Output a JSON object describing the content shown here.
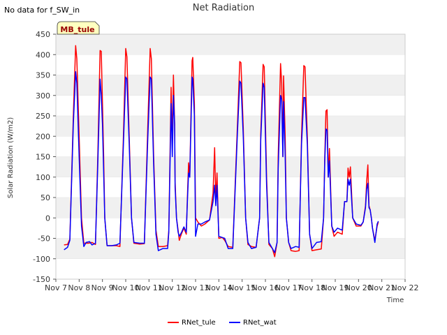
{
  "note": "No data for f_SW_in",
  "site_badge": "MB_tule",
  "chart_data": {
    "type": "line",
    "title": "Net Radiation",
    "xlabel": "Time",
    "ylabel": "Solar Radiation (W/m2)",
    "ylim": [
      -150,
      450
    ],
    "yticks": [
      -150,
      -100,
      -50,
      0,
      50,
      100,
      150,
      200,
      250,
      300,
      350,
      400,
      450
    ],
    "x_unit": "days since Nov 7",
    "xlim": [
      0,
      15
    ],
    "xticks": [
      0,
      1,
      2,
      3,
      4,
      5,
      6,
      7,
      8,
      9,
      10,
      11,
      12,
      13,
      14,
      15
    ],
    "xtick_labels": [
      "Nov 7",
      "Nov 8",
      "Nov 9",
      "Nov 10",
      "Nov 11",
      "Nov 12",
      "Nov 13",
      "Nov 14",
      "Nov 15",
      "Nov 16",
      "Nov 17",
      "Nov 18",
      "Nov 19",
      "Nov 20",
      "Nov 21",
      "Nov 22"
    ],
    "grid": "horizontal bands",
    "legend_position": "bottom-center",
    "series": [
      {
        "name": "RNet_tule",
        "color": "#ff0000",
        "points": [
          [
            0.35,
            -66
          ],
          [
            0.5,
            -65
          ],
          [
            0.6,
            -52
          ],
          [
            0.75,
            250
          ],
          [
            0.85,
            422
          ],
          [
            0.9,
            390
          ],
          [
            1.0,
            200
          ],
          [
            1.1,
            0
          ],
          [
            1.2,
            -62
          ],
          [
            1.4,
            -62
          ],
          [
            1.55,
            -60
          ],
          [
            1.7,
            -65
          ],
          [
            1.8,
            150
          ],
          [
            1.9,
            410
          ],
          [
            1.95,
            408
          ],
          [
            2.0,
            280
          ],
          [
            2.05,
            160
          ],
          [
            2.1,
            0
          ],
          [
            2.2,
            -68
          ],
          [
            2.4,
            -68
          ],
          [
            2.6,
            -68
          ],
          [
            2.75,
            -70
          ],
          [
            2.9,
            200
          ],
          [
            3.0,
            415
          ],
          [
            3.05,
            395
          ],
          [
            3.15,
            200
          ],
          [
            3.25,
            0
          ],
          [
            3.35,
            -62
          ],
          [
            3.6,
            -64
          ],
          [
            3.8,
            -63
          ],
          [
            3.95,
            230
          ],
          [
            4.05,
            415
          ],
          [
            4.1,
            390
          ],
          [
            4.2,
            150
          ],
          [
            4.3,
            -30
          ],
          [
            4.4,
            -70
          ],
          [
            4.6,
            -70
          ],
          [
            4.8,
            -68
          ],
          [
            4.85,
            -30
          ],
          [
            4.95,
            320
          ],
          [
            5.0,
            180
          ],
          [
            5.05,
            350
          ],
          [
            5.1,
            230
          ],
          [
            5.12,
            90
          ],
          [
            5.18,
            0
          ],
          [
            5.25,
            -30
          ],
          [
            5.3,
            -55
          ],
          [
            5.4,
            -38
          ],
          [
            5.5,
            -25
          ],
          [
            5.6,
            -40
          ],
          [
            5.65,
            50
          ],
          [
            5.7,
            135
          ],
          [
            5.75,
            100
          ],
          [
            5.8,
            240
          ],
          [
            5.85,
            385
          ],
          [
            5.88,
            393
          ],
          [
            5.95,
            280
          ],
          [
            6.0,
            0
          ],
          [
            6.1,
            -10
          ],
          [
            6.25,
            -20
          ],
          [
            6.4,
            -15
          ],
          [
            6.6,
            -5
          ],
          [
            6.75,
            60
          ],
          [
            6.82,
            172
          ],
          [
            6.87,
            40
          ],
          [
            6.92,
            110
          ],
          [
            7.0,
            -50
          ],
          [
            7.15,
            -48
          ],
          [
            7.25,
            -55
          ],
          [
            7.4,
            -70
          ],
          [
            7.6,
            -72
          ],
          [
            7.8,
            230
          ],
          [
            7.9,
            383
          ],
          [
            7.95,
            380
          ],
          [
            8.05,
            220
          ],
          [
            8.15,
            0
          ],
          [
            8.25,
            -65
          ],
          [
            8.4,
            -70
          ],
          [
            8.6,
            -72
          ],
          [
            8.75,
            0
          ],
          [
            8.8,
            205
          ],
          [
            8.9,
            376
          ],
          [
            8.95,
            370
          ],
          [
            9.05,
            100
          ],
          [
            9.15,
            -65
          ],
          [
            9.3,
            -75
          ],
          [
            9.4,
            -95
          ],
          [
            9.5,
            -60
          ],
          [
            9.55,
            150
          ],
          [
            9.65,
            378
          ],
          [
            9.7,
            330
          ],
          [
            9.75,
            150
          ],
          [
            9.78,
            348
          ],
          [
            9.85,
            200
          ],
          [
            9.9,
            0
          ],
          [
            10.0,
            -60
          ],
          [
            10.1,
            -80
          ],
          [
            10.3,
            -82
          ],
          [
            10.45,
            -80
          ],
          [
            10.55,
            200
          ],
          [
            10.65,
            373
          ],
          [
            10.7,
            370
          ],
          [
            10.8,
            200
          ],
          [
            10.9,
            -40
          ],
          [
            11.0,
            -80
          ],
          [
            11.2,
            -78
          ],
          [
            11.4,
            -76
          ],
          [
            11.5,
            0
          ],
          [
            11.55,
            150
          ],
          [
            11.6,
            262
          ],
          [
            11.65,
            265
          ],
          [
            11.7,
            100
          ],
          [
            11.75,
            170
          ],
          [
            11.85,
            -20
          ],
          [
            11.95,
            -45
          ],
          [
            12.1,
            -35
          ],
          [
            12.3,
            -40
          ],
          [
            12.4,
            40
          ],
          [
            12.5,
            40
          ],
          [
            12.55,
            122
          ],
          [
            12.6,
            100
          ],
          [
            12.65,
            125
          ],
          [
            12.75,
            0
          ],
          [
            12.9,
            -20
          ],
          [
            13.1,
            -20
          ],
          [
            13.2,
            -10
          ],
          [
            13.3,
            30
          ],
          [
            13.35,
            90
          ],
          [
            13.4,
            130
          ],
          [
            13.45,
            30
          ],
          [
            13.5,
            20
          ],
          [
            13.55,
            0
          ],
          [
            13.6,
            -25
          ],
          [
            13.7,
            -55
          ],
          [
            13.8,
            -20
          ],
          [
            13.85,
            -10
          ]
        ]
      },
      {
        "name": "RNet_wat",
        "color": "#0000ff",
        "points": [
          [
            0.35,
            -78
          ],
          [
            0.5,
            -72
          ],
          [
            0.6,
            -55
          ],
          [
            0.75,
            230
          ],
          [
            0.85,
            358
          ],
          [
            0.9,
            330
          ],
          [
            1.0,
            150
          ],
          [
            1.1,
            -20
          ],
          [
            1.2,
            -70
          ],
          [
            1.3,
            -60
          ],
          [
            1.45,
            -58
          ],
          [
            1.55,
            -66
          ],
          [
            1.7,
            -62
          ],
          [
            1.8,
            130
          ],
          [
            1.9,
            340
          ],
          [
            1.95,
            300
          ],
          [
            2.0,
            230
          ],
          [
            2.05,
            120
          ],
          [
            2.1,
            0
          ],
          [
            2.2,
            -68
          ],
          [
            2.4,
            -68
          ],
          [
            2.6,
            -66
          ],
          [
            2.75,
            -62
          ],
          [
            2.9,
            180
          ],
          [
            3.0,
            345
          ],
          [
            3.05,
            340
          ],
          [
            3.15,
            180
          ],
          [
            3.25,
            0
          ],
          [
            3.35,
            -60
          ],
          [
            3.6,
            -62
          ],
          [
            3.8,
            -62
          ],
          [
            3.95,
            200
          ],
          [
            4.05,
            345
          ],
          [
            4.1,
            340
          ],
          [
            4.2,
            130
          ],
          [
            4.3,
            -40
          ],
          [
            4.4,
            -80
          ],
          [
            4.6,
            -75
          ],
          [
            4.8,
            -75
          ],
          [
            4.85,
            -35
          ],
          [
            4.95,
            280
          ],
          [
            5.0,
            150
          ],
          [
            5.05,
            300
          ],
          [
            5.1,
            230
          ],
          [
            5.12,
            75
          ],
          [
            5.18,
            0
          ],
          [
            5.25,
            -35
          ],
          [
            5.3,
            -45
          ],
          [
            5.4,
            -35
          ],
          [
            5.5,
            -22
          ],
          [
            5.6,
            -35
          ],
          [
            5.65,
            40
          ],
          [
            5.7,
            110
          ],
          [
            5.75,
            100
          ],
          [
            5.8,
            220
          ],
          [
            5.85,
            345
          ],
          [
            5.88,
            340
          ],
          [
            5.95,
            250
          ],
          [
            6.0,
            -45
          ],
          [
            6.1,
            -15
          ],
          [
            6.25,
            -15
          ],
          [
            6.4,
            -10
          ],
          [
            6.6,
            -5
          ],
          [
            6.75,
            40
          ],
          [
            6.82,
            80
          ],
          [
            6.87,
            30
          ],
          [
            6.92,
            80
          ],
          [
            7.0,
            -45
          ],
          [
            7.15,
            -48
          ],
          [
            7.25,
            -50
          ],
          [
            7.4,
            -75
          ],
          [
            7.6,
            -75
          ],
          [
            7.8,
            210
          ],
          [
            7.9,
            335
          ],
          [
            7.95,
            330
          ],
          [
            8.05,
            200
          ],
          [
            8.15,
            0
          ],
          [
            8.25,
            -60
          ],
          [
            8.4,
            -75
          ],
          [
            8.6,
            -72
          ],
          [
            8.75,
            0
          ],
          [
            8.8,
            190
          ],
          [
            8.9,
            330
          ],
          [
            8.95,
            320
          ],
          [
            9.05,
            80
          ],
          [
            9.15,
            -60
          ],
          [
            9.3,
            -75
          ],
          [
            9.4,
            -85
          ],
          [
            9.5,
            -60
          ],
          [
            9.55,
            120
          ],
          [
            9.65,
            300
          ],
          [
            9.7,
            290
          ],
          [
            9.75,
            150
          ],
          [
            9.78,
            285
          ],
          [
            9.85,
            150
          ],
          [
            9.9,
            0
          ],
          [
            10.0,
            -60
          ],
          [
            10.1,
            -75
          ],
          [
            10.3,
            -70
          ],
          [
            10.45,
            -72
          ],
          [
            10.55,
            180
          ],
          [
            10.65,
            295
          ],
          [
            10.7,
            295
          ],
          [
            10.8,
            180
          ],
          [
            10.9,
            -40
          ],
          [
            11.0,
            -75
          ],
          [
            11.2,
            -60
          ],
          [
            11.4,
            -58
          ],
          [
            11.5,
            0
          ],
          [
            11.55,
            140
          ],
          [
            11.6,
            218
          ],
          [
            11.65,
            215
          ],
          [
            11.7,
            100
          ],
          [
            11.75,
            140
          ],
          [
            11.85,
            -20
          ],
          [
            11.95,
            -35
          ],
          [
            12.1,
            -25
          ],
          [
            12.3,
            -30
          ],
          [
            12.4,
            40
          ],
          [
            12.5,
            40
          ],
          [
            12.55,
            95
          ],
          [
            12.6,
            80
          ],
          [
            12.65,
            95
          ],
          [
            12.75,
            0
          ],
          [
            12.9,
            -15
          ],
          [
            13.1,
            -18
          ],
          [
            13.2,
            -10
          ],
          [
            13.3,
            25
          ],
          [
            13.35,
            70
          ],
          [
            13.4,
            85
          ],
          [
            13.45,
            25
          ],
          [
            13.5,
            20
          ],
          [
            13.55,
            0
          ],
          [
            13.6,
            -25
          ],
          [
            13.7,
            -60
          ],
          [
            13.8,
            -15
          ],
          [
            13.85,
            -8
          ]
        ]
      }
    ]
  }
}
